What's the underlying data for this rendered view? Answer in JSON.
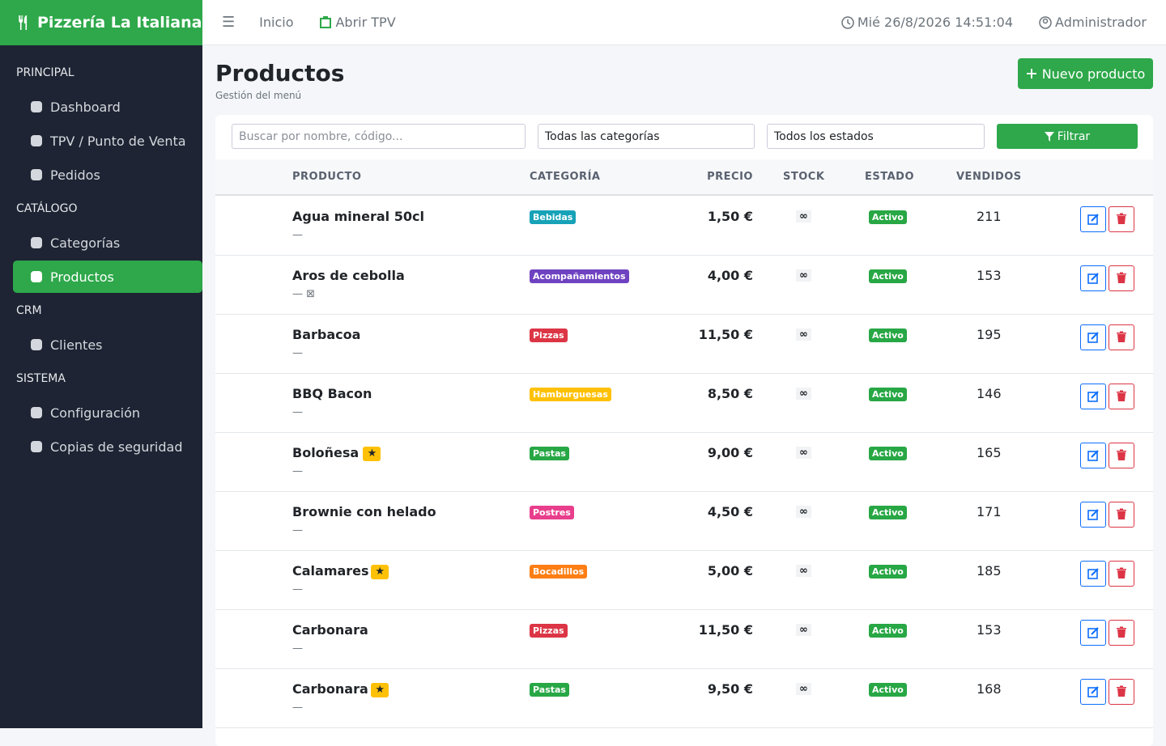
{
  "brand": "Pizzería La Italiana",
  "sidebar": {
    "sections": [
      {
        "title": "PRINCIPAL",
        "items": [
          {
            "label": "Dashboard"
          },
          {
            "label": "TPV / Punto de Venta"
          },
          {
            "label": "Pedidos"
          }
        ]
      },
      {
        "title": "CATÁLOGO",
        "items": [
          {
            "label": "Categorías"
          },
          {
            "label": "Productos",
            "active": true
          }
        ]
      },
      {
        "title": "CRM",
        "items": [
          {
            "label": "Clientes"
          }
        ]
      },
      {
        "title": "SISTEMA",
        "items": [
          {
            "label": "Configuración"
          },
          {
            "label": "Copias de seguridad"
          }
        ]
      }
    ]
  },
  "topbar": {
    "home": "Inicio",
    "tpv": "Abrir TPV",
    "datetime": "Mié 26/8/2026 14:51:04",
    "user": "Administrador"
  },
  "page": {
    "title": "Productos",
    "subtitle": "Gestión del menú",
    "new_button": "Nuevo producto"
  },
  "filters": {
    "search_placeholder": "Buscar por nombre, código...",
    "category": "Todas las categorías",
    "status": "Todos los estados",
    "button": "Filtrar"
  },
  "table": {
    "columns": [
      "PRODUCTO",
      "CATEGORÍA",
      "PRECIO",
      "STOCK",
      "ESTADO",
      "VENDIDOS"
    ],
    "rows": [
      {
        "name": "Agua mineral 50cl",
        "featured": false,
        "note": "—",
        "category": "Bebidas",
        "category_color": "#17a2b8",
        "price": "1,50 €",
        "stock": "∞",
        "status": "Activo",
        "sold": "211"
      },
      {
        "name": "Aros de cebolla",
        "featured": false,
        "note": "— ⊠",
        "category": "Acompañamientos",
        "category_color": "#6f42c1",
        "price": "4,00 €",
        "stock": "∞",
        "status": "Activo",
        "sold": "153"
      },
      {
        "name": "Barbacoa",
        "featured": false,
        "note": "—",
        "category": "Pizzas",
        "category_color": "#dc3545",
        "price": "11,50 €",
        "stock": "∞",
        "status": "Activo",
        "sold": "195"
      },
      {
        "name": "BBQ Bacon",
        "featured": false,
        "note": "—",
        "category": "Hamburguesas",
        "category_color": "#ffc107",
        "price": "8,50 €",
        "stock": "∞",
        "status": "Activo",
        "sold": "146"
      },
      {
        "name": "Boloñesa",
        "featured": true,
        "note": "—",
        "category": "Pastas",
        "category_color": "#28a745",
        "price": "9,00 €",
        "stock": "∞",
        "status": "Activo",
        "sold": "165"
      },
      {
        "name": "Brownie con helado",
        "featured": false,
        "note": "—",
        "category": "Postres",
        "category_color": "#e83e8c",
        "price": "4,50 €",
        "stock": "∞",
        "status": "Activo",
        "sold": "171"
      },
      {
        "name": "Calamares",
        "featured": true,
        "note": "—",
        "category": "Bocadillos",
        "category_color": "#fd7e14",
        "price": "5,00 €",
        "stock": "∞",
        "status": "Activo",
        "sold": "185"
      },
      {
        "name": "Carbonara",
        "featured": false,
        "note": "—",
        "category": "Pizzas",
        "category_color": "#dc3545",
        "price": "11,50 €",
        "stock": "∞",
        "status": "Activo",
        "sold": "153"
      },
      {
        "name": "Carbonara",
        "featured": true,
        "note": "—",
        "category": "Pastas",
        "category_color": "#28a745",
        "price": "9,50 €",
        "stock": "∞",
        "status": "Activo",
        "sold": "168"
      }
    ]
  }
}
